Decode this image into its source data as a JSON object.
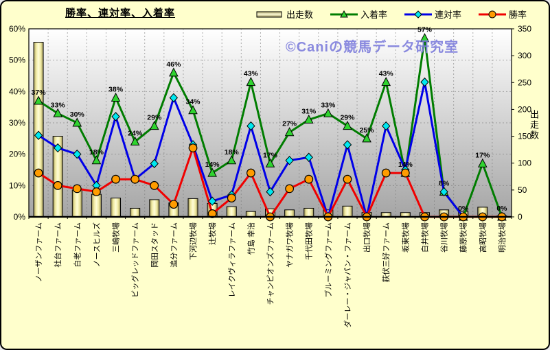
{
  "title": "勝率、連対率、入着率",
  "watermark": "©Caniの競馬データ研究室",
  "legend": [
    {
      "key": "starts",
      "label": "出走数",
      "swatch": "bar"
    },
    {
      "key": "placing",
      "label": "入着率",
      "swatch": "triangle"
    },
    {
      "key": "quinella",
      "label": "連対率",
      "swatch": "diamond"
    },
    {
      "key": "win",
      "label": "勝率",
      "swatch": "circle"
    }
  ],
  "colors": {
    "background": "#ffffcc",
    "plot_top": "#ffffff",
    "plot_bottom": "#a5a5a5",
    "grid": "#787878",
    "bar_light": "#fffdd8",
    "bar_mid": "#efe9a0",
    "bar_dark": "#9a9157",
    "placing_line": "#007d00",
    "placing_fill": "#2fd42f",
    "quinella_line": "#0000e8",
    "quinella_fill": "#00e8f0",
    "win_line": "#f00000",
    "win_fill": "#ff9c00",
    "label_text": "#000000"
  },
  "chart_data": {
    "type": "bar+line combo",
    "title": "勝率、連対率、入着率",
    "grid": true,
    "legend_position": "top",
    "categories": [
      "ノーザンファーム",
      "社台ファーム",
      "白老ファーム",
      "ノースヒルズ",
      "三嶋牧場",
      "ビッグレッドファーム",
      "岡田スタッド",
      "追分ファーム",
      "下河辺牧場",
      "辻牧場",
      "レイクヴィラファーム",
      "竹島 幸治",
      "チャンピオンズファーム",
      "ヤナガワ牧場",
      "千代田牧場",
      "ブルーミングファーム",
      "ダーレー・ジャパン・ファーム",
      "出口牧場",
      "荻伏三好ファーム",
      "坂東牧場",
      "白井牧場",
      "谷川牧場",
      "藤原牧場",
      "高昭牧場",
      "明治牧場"
    ],
    "left_axis": {
      "min": 0,
      "max": 60,
      "step": 10,
      "ticks": [
        "0%",
        "10%",
        "20%",
        "30%",
        "40%",
        "50%",
        "60%"
      ]
    },
    "right_axis": {
      "min": 0,
      "max": 350,
      "step": 50,
      "ticks": [
        "0",
        "50",
        "100",
        "150",
        "200",
        "250",
        "300",
        "350"
      ],
      "label": "出走数"
    },
    "series": [
      {
        "name": "出走数",
        "type": "bar",
        "axis": "right",
        "values": [
          325,
          150,
          50,
          42,
          35,
          16,
          32,
          26,
          34,
          25,
          19,
          10,
          15,
          13,
          16,
          13,
          20,
          8,
          8,
          8,
          8,
          13,
          10,
          18,
          2
        ]
      },
      {
        "name": "入着率",
        "type": "line",
        "marker": "triangle",
        "axis": "left",
        "values": [
          37,
          33,
          30,
          18,
          38,
          24,
          29,
          46,
          34,
          14,
          18,
          43,
          17,
          27,
          31,
          33,
          29,
          25,
          43,
          14,
          57,
          8,
          0,
          17,
          0
        ],
        "point_labels": [
          "37%",
          "33%",
          "30%",
          "18%",
          "38%",
          "24%",
          "29%",
          "46%",
          "34%",
          "14%",
          "18%",
          "43%",
          "17%",
          "27%",
          "31%",
          "33%",
          "29%",
          "25%",
          "43%",
          "14%",
          "57%",
          "8%",
          "0%",
          "17%",
          "0%"
        ]
      },
      {
        "name": "連対率",
        "type": "line",
        "marker": "diamond",
        "axis": "left",
        "values": [
          26,
          22,
          20,
          10,
          32,
          12,
          17,
          38,
          23,
          5,
          7,
          29,
          8,
          18,
          19,
          0,
          23,
          0,
          29,
          15,
          43,
          8,
          0,
          0,
          0
        ]
      },
      {
        "name": "勝率",
        "type": "line",
        "marker": "circle",
        "axis": "left",
        "values": [
          14,
          10,
          9,
          8,
          12,
          12,
          10,
          4,
          22,
          1,
          6,
          14,
          0,
          9,
          12,
          0,
          12,
          0,
          14,
          14,
          0,
          0,
          0,
          0,
          0
        ]
      }
    ]
  }
}
